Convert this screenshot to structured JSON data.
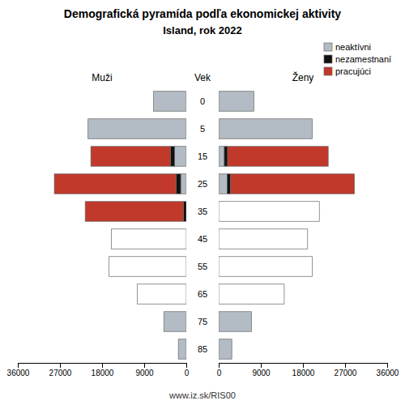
{
  "chart_data": [
    {
      "type": "bar",
      "orientation": "horizontal",
      "stacked": true,
      "title": "Demografická pyramída podľa ekonomickej aktivity",
      "subtitle": "Island, rok 2022",
      "xlabel": "Muži",
      "ylabel": "Vek",
      "categories": [
        "85",
        "75",
        "65",
        "55",
        "45",
        "35",
        "25",
        "15",
        "5",
        "0"
      ],
      "series": [
        {
          "color": "#b3bcc4",
          "values": [
            1700,
            4800,
            0,
            0,
            0,
            0,
            1200,
            2500,
            21000,
            7000
          ]
        },
        {
          "color": "#111111",
          "values": [
            0,
            0,
            0,
            0,
            0,
            600,
            1000,
            900,
            0,
            0
          ]
        },
        {
          "color": "#c0392b",
          "values": [
            0,
            0,
            0,
            0,
            0,
            21000,
            26000,
            17000,
            0,
            0
          ]
        },
        {
          "color": "#ffffff",
          "values": [
            0,
            0,
            10500,
            16500,
            16000,
            0,
            0,
            0,
            0,
            0
          ]
        }
      ],
      "xlim": [
        36000,
        0
      ],
      "xticks": [
        36000,
        27000,
        18000,
        9000,
        0
      ],
      "annotations": [
        "www.iz.sk/RIS00"
      ]
    },
    {
      "type": "bar",
      "orientation": "horizontal",
      "stacked": true,
      "xlabel": "Ženy",
      "categories": [
        "85",
        "75",
        "65",
        "55",
        "45",
        "35",
        "25",
        "15",
        "5",
        "0"
      ],
      "series": [
        {
          "name": "neaktívni",
          "color": "#b3bcc4",
          "values": [
            2800,
            7000,
            0,
            0,
            0,
            0,
            1800,
            1200,
            20000,
            7500
          ]
        },
        {
          "name": "nezamestnaní",
          "color": "#111111",
          "values": [
            0,
            0,
            0,
            0,
            0,
            0,
            700,
            700,
            0,
            0
          ]
        },
        {
          "name": "pracujúci",
          "color": "#c0392b",
          "values": [
            0,
            0,
            0,
            0,
            0,
            0,
            26500,
            21500,
            0,
            0
          ]
        },
        {
          "color": "#ffffff",
          "values": [
            0,
            0,
            14000,
            20000,
            19000,
            21500,
            0,
            0,
            0,
            0
          ]
        }
      ],
      "xlim": [
        0,
        36000
      ],
      "xticks": [
        0,
        9000,
        18000,
        27000,
        36000
      ],
      "legend": "upper right"
    }
  ]
}
